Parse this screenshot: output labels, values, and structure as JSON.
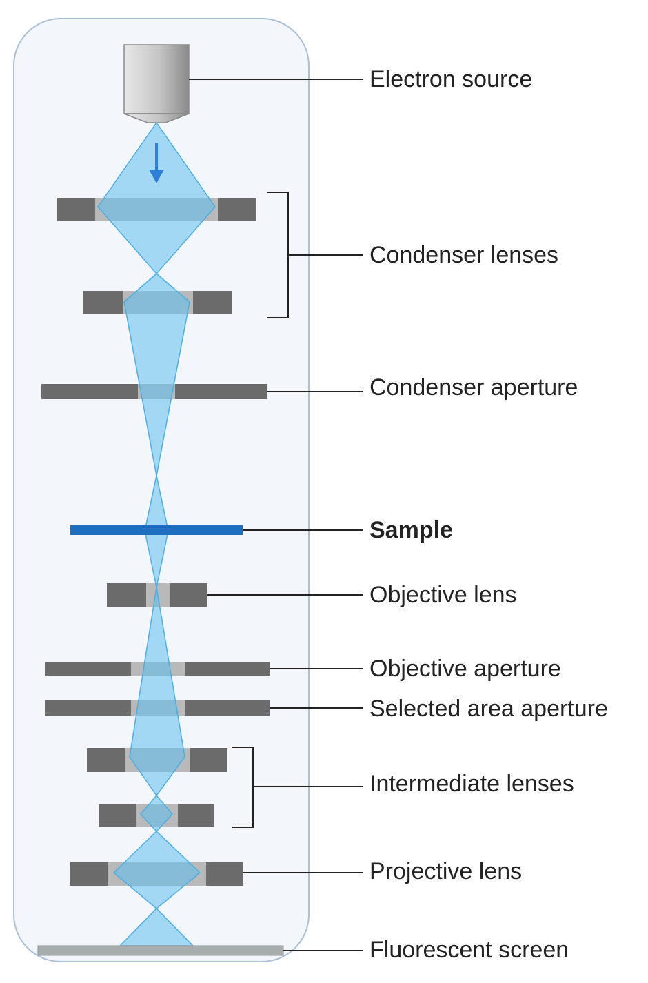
{
  "labels": {
    "electron_source": "Electron source",
    "condenser_lenses": "Condenser lenses",
    "condenser_aperture": "Condenser aperture",
    "sample": "Sample",
    "objective_lens": "Objective lens",
    "objective_aperture": "Objective aperture",
    "selected_area_aperture": "Selected area aperture",
    "intermediate_lenses": "Intermediate lenses",
    "projective_lens": "Projective lens",
    "fluorescent_screen": "Fluorescent screen"
  },
  "colors": {
    "column_fill": "#f3f6fb",
    "column_border": "#a9c0d8",
    "beam_fill": "#5fbfee",
    "beam_stroke": "#4aaee6",
    "lens_dark": "#6b6b6b",
    "lens_light": "#b9b9b9",
    "sample": "#1f6fc0",
    "arrow": "#2f80d8",
    "screen": "#a7adad",
    "leader_line": "#222222"
  }
}
